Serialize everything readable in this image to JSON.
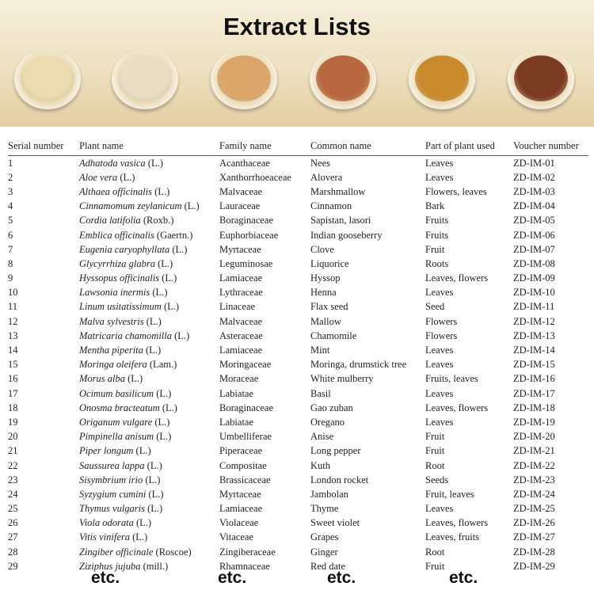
{
  "banner": {
    "title": "Extract Lists",
    "powder_colors": [
      "#eadbb0",
      "#e8dec4",
      "#dca56a",
      "#b9673e",
      "#c98a2c",
      "#7b3a22"
    ]
  },
  "table": {
    "headers": [
      "Serial number",
      "Plant name",
      "Family name",
      "Common name",
      "Part of plant used",
      "Voucher number"
    ],
    "rows": [
      {
        "n": "1",
        "species": "Adhatoda vasica",
        "auth": " (L.)",
        "family": "Acanthaceae",
        "common": "Nees",
        "part": "Leaves",
        "voucher": "ZD-IM-01"
      },
      {
        "n": "2",
        "species": "Aloe vera",
        "auth": " (L.)",
        "family": "Xanthorrhoeaceae",
        "common": "Alovera",
        "part": "Leaves",
        "voucher": "ZD-IM-02"
      },
      {
        "n": "3",
        "species": "Althaea officinalis",
        "auth": " (L.)",
        "family": "Malvaceae",
        "common": "Marshmallow",
        "part": "Flowers, leaves",
        "voucher": "ZD-IM-03"
      },
      {
        "n": "4",
        "species": "Cinnamomum zeylanicum",
        "auth": " (L.)",
        "family": "Lauraceae",
        "common": "Cinnamon",
        "part": "Bark",
        "voucher": "ZD-IM-04"
      },
      {
        "n": "5",
        "species": "Cordia latifolia",
        "auth": " (Roxb.)",
        "family": "Boraginaceae",
        "common": "Sapistan, lasori",
        "part": "Fruits",
        "voucher": "ZD-IM-05"
      },
      {
        "n": "6",
        "species": "Emblica officinalis",
        "auth": " (Gaertn.)",
        "family": "Euphorbiaceae",
        "common": "Indian gooseberry",
        "part": "Fruits",
        "voucher": "ZD-IM-06"
      },
      {
        "n": "7",
        "species": "Eugenia caryophyllata",
        "auth": " (L.)",
        "family": "Myrtaceae",
        "common": "Clove",
        "part": "Fruit",
        "voucher": "ZD-IM-07"
      },
      {
        "n": "8",
        "species": "Glycyrrhiza glabra",
        "auth": " (L.)",
        "family": "Leguminosae",
        "common": "Liquorice",
        "part": "Roots",
        "voucher": "ZD-IM-08"
      },
      {
        "n": "9",
        "species": "Hyssopus officinalis",
        "auth": " (L.)",
        "family": "Lamiaceae",
        "common": "Hyssop",
        "part": "Leaves, flowers",
        "voucher": "ZD-IM-09"
      },
      {
        "n": "10",
        "species": "Lawsonia inermis",
        "auth": " (L.)",
        "family": "Lythraceae",
        "common": "Henna",
        "part": "Leaves",
        "voucher": "ZD-IM-10"
      },
      {
        "n": "11",
        "species": "Linum usitatissimum",
        "auth": " (L.)",
        "family": "Linaceae",
        "common": "Flax seed",
        "part": "Seed",
        "voucher": "ZD-IM-11"
      },
      {
        "n": "12",
        "species": "Malva sylvestris",
        "auth": " (L.)",
        "family": "Malvaceae",
        "common": "Mallow",
        "part": "Flowers",
        "voucher": "ZD-IM-12"
      },
      {
        "n": "13",
        "species": "Matricaria chamomilla",
        "auth": " (L.)",
        "family": "Asteraceae",
        "common": "Chamomile",
        "part": "Flowers",
        "voucher": "ZD-IM-13"
      },
      {
        "n": "14",
        "species": "Mentha piperita",
        "auth": " (L.)",
        "family": "Lamiaceae",
        "common": "Mint",
        "part": "Leaves",
        "voucher": "ZD-IM-14"
      },
      {
        "n": "15",
        "species": "Moringa oleifera",
        "auth": " (Lam.)",
        "family": "Moringaceae",
        "common": "Moringa, drumstick tree",
        "part": "Leaves",
        "voucher": "ZD-IM-15"
      },
      {
        "n": "16",
        "species": "Morus alba",
        "auth": " (L.)",
        "family": "Moraceae",
        "common": "White mulberry",
        "part": "Fruits, leaves",
        "voucher": "ZD-IM-16"
      },
      {
        "n": "17",
        "species": "Ocimum basilicum",
        "auth": " (L.)",
        "family": "Labiatae",
        "common": "Basil",
        "part": "Leaves",
        "voucher": "ZD-IM-17"
      },
      {
        "n": "18",
        "species": "Onosma bracteatum",
        "auth": " (L.)",
        "family": "Boraginaceae",
        "common": "Gao zuban",
        "part": "Leaves, flowers",
        "voucher": "ZD-IM-18"
      },
      {
        "n": "19",
        "species": "Origanum vulgare",
        "auth": " (L.)",
        "family": "Labiatae",
        "common": "Oregano",
        "part": "Leaves",
        "voucher": "ZD-IM-19"
      },
      {
        "n": "20",
        "species": "Pimpinella anisum",
        "auth": " (L.)",
        "family": "Umbelliferae",
        "common": "Anise",
        "part": "Fruit",
        "voucher": "ZD-IM-20"
      },
      {
        "n": "21",
        "species": "Piper longum",
        "auth": " (L.)",
        "family": "Piperaceae",
        "common": "Long pepper",
        "part": "Fruit",
        "voucher": "ZD-IM-21"
      },
      {
        "n": "22",
        "species": "Saussurea lappa",
        "auth": " (L.)",
        "family": "Compositae",
        "common": "Kuth",
        "part": "Root",
        "voucher": "ZD-IM-22"
      },
      {
        "n": "23",
        "species": "Sisymbrium irio",
        "auth": " (L.)",
        "family": "Brassicaceae",
        "common": "London rocket",
        "part": "Seeds",
        "voucher": "ZD-IM-23"
      },
      {
        "n": "24",
        "species": "Syzygium cumini",
        "auth": " (L.)",
        "family": "Myrtaceae",
        "common": "Jambolan",
        "part": "Fruit, leaves",
        "voucher": "ZD-IM-24"
      },
      {
        "n": "25",
        "species": "Thymus vulgaris",
        "auth": " (L.)",
        "family": "Lamiaceae",
        "common": "Thyme",
        "part": "Leaves",
        "voucher": "ZD-IM-25"
      },
      {
        "n": "26",
        "species": "Viola odorata",
        "auth": " (L.)",
        "family": "Violaceae",
        "common": "Sweet violet",
        "part": "Leaves, flowers",
        "voucher": "ZD-IM-26"
      },
      {
        "n": "27",
        "species": "Vitis vinifera",
        "auth": " (L.)",
        "family": "Vitaceae",
        "common": "Grapes",
        "part": "Leaves, fruits",
        "voucher": "ZD-IM-27"
      },
      {
        "n": "28",
        "species": "Zingiber officinale",
        "auth": " (Roscoe)",
        "family": "Zingiberaceae",
        "common": "Ginger",
        "part": "Root",
        "voucher": "ZD-IM-28"
      },
      {
        "n": "29",
        "species": "Ziziphus jujuba",
        "auth": " (mill.)",
        "family": "Rhamnaceae",
        "common": "Red date",
        "part": "Fruit",
        "voucher": "ZD-IM-29"
      }
    ]
  },
  "footer": {
    "etc": [
      "etc.",
      "etc.",
      "etc.",
      "etc."
    ]
  }
}
